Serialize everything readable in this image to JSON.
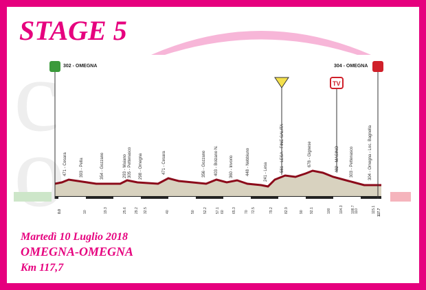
{
  "header": {
    "title": "STAGE 5"
  },
  "profile": {
    "start_label": "302 - OMEGNA",
    "end_label": "304 - OMEGNA",
    "waypoints": [
      "471 - Cesara",
      "393 - Pella",
      "354 - Gozzano",
      "293 - Maiano",
      "305 - Pettenasco",
      "298 - Omegna",
      "471 - Cesara",
      "356 - Gozzano",
      "403 - Bolzano N.",
      "360 - Invorio",
      "448 - Nebbiuno",
      "241 - Lesa",
      "561 - LESA - FINE SALITA",
      "678 - Gignese",
      "482 - MASINO",
      "303 - Pettenasco",
      "304 - Omegna - Loc. Bagnella"
    ],
    "start_km": "0.0",
    "end_km": "117.7",
    "km_labels": [
      "10",
      "19.3",
      "25.6",
      "29.2",
      "32.5",
      "40",
      "50",
      "52.2",
      "57.1",
      "60",
      "65.3",
      "70",
      "72.5",
      "79.2",
      "82.9",
      "90",
      "92.1",
      "100",
      "104.3",
      "108.7",
      "110",
      "115.1"
    ]
  },
  "footer": {
    "date": "Martedì 10 Luglio 2018",
    "route": "OMEGNA-OMEGNA",
    "distance": "Km 117,7"
  }
}
